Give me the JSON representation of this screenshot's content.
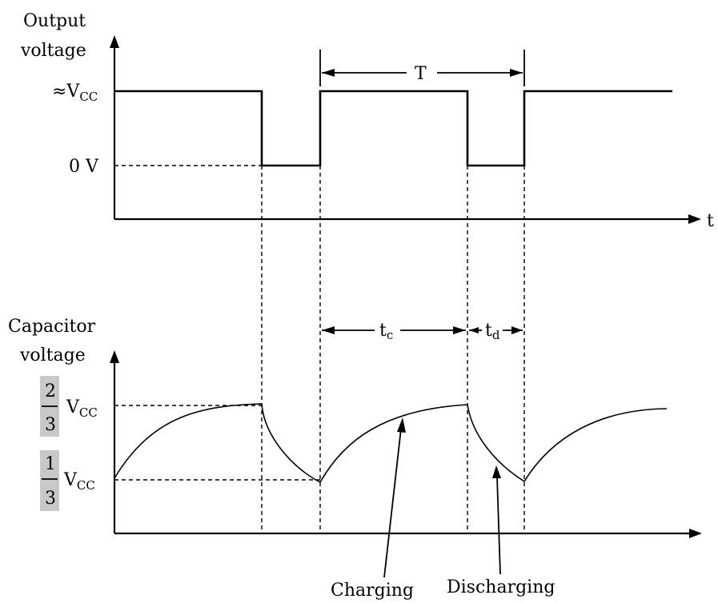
{
  "output_plot": {
    "ylabel_line1": "Output",
    "ylabel_line2": "voltage",
    "level_high": "≈V",
    "level_high_sub": "CC",
    "level_low": "0 V",
    "xlabel": "t",
    "period_label": "T"
  },
  "capacitor_plot": {
    "ylabel_line1": "Capacitor",
    "ylabel_line2": "voltage",
    "upper_num": "2",
    "upper_den": "3",
    "upper_v": "V",
    "upper_v_sub": "CC",
    "lower_num": "1",
    "lower_den": "3",
    "lower_v": "V",
    "lower_v_sub": "CC",
    "tc_label": "t",
    "tc_sub": "c",
    "td_label": "t",
    "td_sub": "d"
  },
  "annotations": {
    "charging": "Charging",
    "discharging": "Discharging"
  }
}
